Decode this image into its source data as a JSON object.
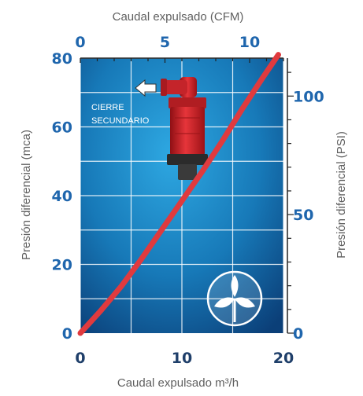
{
  "chart_data": {
    "type": "line",
    "xlabel_bottom": "Caudal expulsado m³/h",
    "xlabel_top": "Caudal expulsado (CFM)",
    "ylabel_left": "Presión diferencial (mca)",
    "ylabel_right": "Presión diferencial (PSI)",
    "xlim": [
      0,
      20
    ],
    "ylim": [
      0,
      80
    ],
    "x_ticks_bottom": [
      "0",
      "10",
      "20"
    ],
    "x_ticks_top": [
      "0",
      "5",
      "10"
    ],
    "y_ticks_left": [
      "0",
      "20",
      "40",
      "60",
      "80"
    ],
    "y_ticks_right": [
      "0",
      "50",
      "100"
    ],
    "series": [
      {
        "color": "#e03a3e",
        "x": [
          0,
          2,
          4,
          6,
          8,
          10,
          12,
          14,
          16,
          18,
          19.5
        ],
        "y": [
          0,
          6.5,
          13.5,
          21.5,
          30,
          38.5,
          47,
          56,
          65.5,
          74.5,
          81
        ]
      }
    ],
    "annotation": [
      "CIERRE",
      "SECUNDARIO"
    ],
    "grid": true,
    "colors": {
      "plot_bg": "#1a86c6",
      "curve": "#e03a3e",
      "tick_blue": "#1f66ad"
    }
  }
}
